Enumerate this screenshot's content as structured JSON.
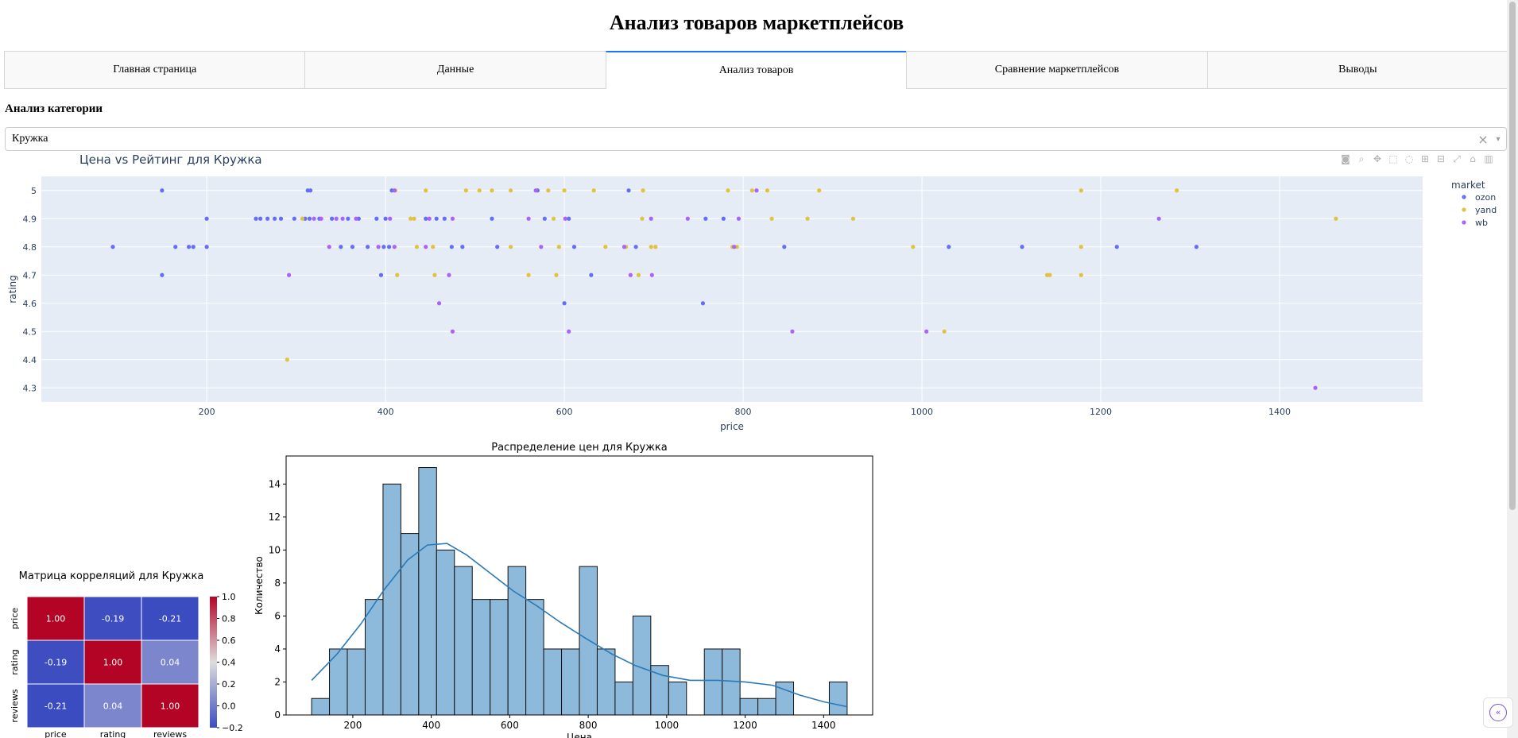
{
  "page": {
    "title": "Анализ товаров маркетплейсов",
    "tabs": [
      "Главная страница",
      "Данные",
      "Анализ товаров",
      "Сравнение маркетплейсов",
      "Выводы"
    ],
    "selected_tab": "Анализ товаров",
    "section_heading": "Анализ категории",
    "dropdown": {
      "value": "Кружка",
      "clear_icon": "×",
      "arrow_icon": "▾"
    }
  },
  "icons": {
    "modebar": [
      "camera-icon",
      "zoom-icon",
      "pan-icon",
      "box-select-icon",
      "lasso-icon",
      "zoom-in-icon",
      "zoom-out-icon",
      "autoscale-icon",
      "reset-axes-icon",
      "plotly-logo-icon"
    ],
    "modebar_glyphs": [
      "◙",
      "⌕",
      "✥",
      "⬚",
      "◌",
      "⊞",
      "⊟",
      "⤢",
      "⌂",
      "▥"
    ],
    "sidebar_toggle": "«"
  },
  "chart_data": [
    {
      "type": "scatter",
      "title": "Цена vs Рейтинг для Кружка",
      "xlabel": "price",
      "ylabel": "rating",
      "xlim": [
        15,
        1560
      ],
      "ylim": [
        4.25,
        5.05
      ],
      "xticks": [
        200,
        400,
        600,
        800,
        1000,
        1200,
        1400
      ],
      "yticks": [
        4.3,
        4.4,
        4.5,
        4.6,
        4.7,
        4.8,
        4.9,
        5
      ],
      "ytick_labels": [
        "4.3",
        "4.4",
        "4.5",
        "4.6",
        "4.7",
        "4.8",
        "4.9",
        "5"
      ],
      "legend_title": "market",
      "series": [
        {
          "name": "ozon",
          "color": "#636efa",
          "points": [
            [
              150,
              5
            ],
            [
              313,
              5
            ],
            [
              316,
              5
            ],
            [
              407,
              5
            ],
            [
              570,
              5
            ],
            [
              672,
              5
            ],
            [
              200,
              4.9
            ],
            [
              255,
              4.9
            ],
            [
              260,
              4.9
            ],
            [
              268,
              4.9
            ],
            [
              276,
              4.9
            ],
            [
              283,
              4.9
            ],
            [
              298,
              4.9
            ],
            [
              310,
              4.9
            ],
            [
              315,
              4.9
            ],
            [
              326,
              4.9
            ],
            [
              340,
              4.9
            ],
            [
              358,
              4.9
            ],
            [
              370,
              4.9
            ],
            [
              390,
              4.9
            ],
            [
              400,
              4.9
            ],
            [
              445,
              4.9
            ],
            [
              457,
              4.9
            ],
            [
              466,
              4.9
            ],
            [
              519,
              4.9
            ],
            [
              578,
              4.9
            ],
            [
              605,
              4.9
            ],
            [
              758,
              4.9
            ],
            [
              778,
              4.9
            ],
            [
              95,
              4.8
            ],
            [
              165,
              4.8
            ],
            [
              180,
              4.8
            ],
            [
              185,
              4.8
            ],
            [
              200,
              4.8
            ],
            [
              350,
              4.8
            ],
            [
              363,
              4.8
            ],
            [
              380,
              4.8
            ],
            [
              398,
              4.8
            ],
            [
              404,
              4.8
            ],
            [
              474,
              4.8
            ],
            [
              486,
              4.8
            ],
            [
              525,
              4.8
            ],
            [
              611,
              4.8
            ],
            [
              680,
              4.8
            ],
            [
              846,
              4.8
            ],
            [
              1030,
              4.8
            ],
            [
              1112,
              4.8
            ],
            [
              1218,
              4.8
            ],
            [
              1307,
              4.8
            ],
            [
              150,
              4.7
            ],
            [
              395,
              4.7
            ],
            [
              630,
              4.7
            ],
            [
              600,
              4.6
            ],
            [
              755,
              4.6
            ]
          ]
        },
        {
          "name": "yand",
          "color": "#e0c341",
          "points": [
            [
              411,
              5
            ],
            [
              445,
              5
            ],
            [
              490,
              5
            ],
            [
              505,
              5
            ],
            [
              519,
              5
            ],
            [
              540,
              5
            ],
            [
              582,
              5
            ],
            [
              600,
              5
            ],
            [
              633,
              5
            ],
            [
              688,
              5
            ],
            [
              783,
              5
            ],
            [
              810,
              5
            ],
            [
              827,
              5
            ],
            [
              885,
              5
            ],
            [
              1178,
              5
            ],
            [
              1285,
              5
            ],
            [
              307,
              4.9
            ],
            [
              428,
              4.9
            ],
            [
              432,
              4.9
            ],
            [
              588,
              4.9
            ],
            [
              687,
              4.9
            ],
            [
              832,
              4.9
            ],
            [
              872,
              4.9
            ],
            [
              923,
              4.9
            ],
            [
              1463,
              4.9
            ],
            [
              435,
              4.8
            ],
            [
              453,
              4.8
            ],
            [
              540,
              4.8
            ],
            [
              594,
              4.8
            ],
            [
              646,
              4.8
            ],
            [
              669,
              4.8
            ],
            [
              697,
              4.8
            ],
            [
              702,
              4.8
            ],
            [
              788,
              4.8
            ],
            [
              793,
              4.8
            ],
            [
              990,
              4.8
            ],
            [
              1178,
              4.8
            ],
            [
              413,
              4.7
            ],
            [
              455,
              4.7
            ],
            [
              560,
              4.7
            ],
            [
              591,
              4.7
            ],
            [
              683,
              4.7
            ],
            [
              1140,
              4.7
            ],
            [
              1143,
              4.7
            ],
            [
              1178,
              4.7
            ],
            [
              1025,
              4.5
            ],
            [
              290,
              4.4
            ]
          ]
        },
        {
          "name": "wb",
          "color": "#ab63fa",
          "points": [
            [
              410,
              5
            ],
            [
              568,
              5
            ],
            [
              815,
              5
            ],
            [
              320,
              4.9
            ],
            [
              328,
              4.9
            ],
            [
              345,
              4.9
            ],
            [
              352,
              4.9
            ],
            [
              367,
              4.9
            ],
            [
              405,
              4.9
            ],
            [
              449,
              4.9
            ],
            [
              475,
              4.9
            ],
            [
              560,
              4.9
            ],
            [
              601,
              4.9
            ],
            [
              697,
              4.9
            ],
            [
              738,
              4.9
            ],
            [
              795,
              4.9
            ],
            [
              1265,
              4.9
            ],
            [
              337,
              4.8
            ],
            [
              392,
              4.8
            ],
            [
              410,
              4.8
            ],
            [
              445,
              4.8
            ],
            [
              574,
              4.8
            ],
            [
              667,
              4.8
            ],
            [
              790,
              4.8
            ],
            [
              292,
              4.7
            ],
            [
              471,
              4.7
            ],
            [
              674,
              4.7
            ],
            [
              698,
              4.7
            ],
            [
              460,
              4.6
            ],
            [
              475,
              4.5
            ],
            [
              605,
              4.5
            ],
            [
              855,
              4.5
            ],
            [
              1005,
              4.5
            ],
            [
              1440,
              4.3
            ]
          ]
        }
      ]
    },
    {
      "type": "heatmap",
      "title": "Матрица корреляций для Кружка",
      "labels": [
        "price",
        "rating",
        "reviews"
      ],
      "matrix": [
        [
          1.0,
          -0.19,
          -0.21
        ],
        [
          -0.19,
          1.0,
          0.04
        ],
        [
          -0.21,
          0.04,
          1.0
        ]
      ],
      "cell_labels": [
        [
          "1.00",
          "-0.19",
          "-0.21"
        ],
        [
          "-0.19",
          "1.00",
          "0.04"
        ],
        [
          "-0.21",
          "0.04",
          "1.00"
        ]
      ],
      "colormap": "coolwarm",
      "vmin": -0.2,
      "vmax": 1.0,
      "colorbar_ticks": [
        1.0,
        0.8,
        0.6,
        0.4,
        0.2,
        0.0,
        -0.2
      ],
      "colorbar_tick_labels": [
        "1.0",
        "0.8",
        "0.6",
        "0.4",
        "0.2",
        "0.0",
        "−0.2"
      ]
    },
    {
      "type": "bar",
      "subtype": "histogram_with_kde",
      "title": "Распределение цен для Кружка",
      "xlabel": "Цена",
      "ylabel": "Количество",
      "bin_start": 95,
      "bin_width": 45.5,
      "counts": [
        1,
        4,
        4,
        7,
        14,
        11,
        15,
        10,
        9,
        7,
        7,
        9,
        7,
        4,
        4,
        9,
        4,
        2,
        6,
        3,
        2,
        0,
        4,
        4,
        1,
        1,
        2,
        0,
        0,
        2
      ],
      "kde_x": [
        95,
        160,
        220,
        280,
        340,
        390,
        440,
        490,
        550,
        610,
        670,
        730,
        790,
        860,
        920,
        990,
        1060,
        1130,
        1200,
        1270,
        1340,
        1400,
        1460
      ],
      "kde_y": [
        2.1,
        3.7,
        5.5,
        7.6,
        9.4,
        10.3,
        10.4,
        9.7,
        8.6,
        7.5,
        6.6,
        5.6,
        4.7,
        3.7,
        3.0,
        2.4,
        2.1,
        2.1,
        2.0,
        1.8,
        1.2,
        0.8,
        0.5
      ],
      "xlim": [
        30,
        1525
      ],
      "ylim": [
        0,
        15.7
      ],
      "xticks": [
        200,
        400,
        600,
        800,
        1000,
        1200,
        1400
      ],
      "yticks": [
        0,
        2,
        4,
        6,
        8,
        10,
        12,
        14
      ],
      "bar_color": "#8db9db",
      "edge_color": "#111111",
      "line_color": "#2a7ab8"
    }
  ]
}
